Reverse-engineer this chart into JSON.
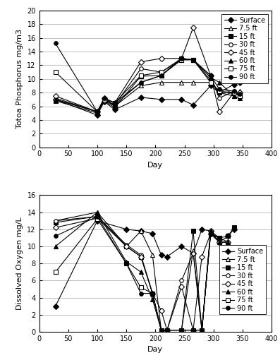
{
  "tp_data": {
    "Surface": {
      "days": [
        28,
        100,
        112,
        130,
        175,
        210,
        245,
        265,
        295,
        310,
        335,
        345
      ],
      "vals": [
        7.0,
        4.7,
        6.7,
        5.5,
        7.3,
        7.0,
        7.0,
        6.2,
        9.0,
        8.0,
        9.2,
        9.5
      ]
    },
    "7.5 ft": {
      "days": [
        28,
        100,
        112,
        130,
        175,
        210,
        245,
        265,
        295,
        310,
        335,
        345
      ],
      "vals": [
        7.2,
        5.2,
        7.0,
        6.0,
        9.0,
        9.5,
        9.5,
        9.5,
        9.5,
        8.0,
        7.5,
        8.2
      ]
    },
    "15 ft": {
      "days": [
        28,
        100,
        112,
        130,
        175,
        210,
        245,
        265,
        295,
        310,
        335,
        345
      ],
      "vals": [
        6.8,
        5.0,
        6.8,
        5.8,
        10.4,
        10.5,
        13.0,
        12.8,
        9.8,
        8.0,
        8.0,
        7.5
      ]
    },
    "30 ft": {
      "days": [
        28,
        100,
        112,
        130,
        175,
        210,
        245,
        265,
        295,
        310,
        335,
        345
      ],
      "vals": [
        7.0,
        5.2,
        6.8,
        6.2,
        11.5,
        11.0,
        13.0,
        12.8,
        10.5,
        7.2,
        8.2,
        7.8
      ]
    },
    "45 ft": {
      "days": [
        28,
        100,
        112,
        130,
        175,
        210,
        245,
        265,
        295,
        310,
        335,
        345
      ],
      "vals": [
        7.5,
        5.2,
        7.2,
        6.5,
        12.5,
        13.0,
        13.0,
        17.5,
        10.5,
        5.2,
        8.0,
        8.0
      ]
    },
    "60 ft": {
      "days": [
        28,
        100,
        112,
        130,
        175,
        210,
        245,
        265,
        295,
        310,
        335,
        345
      ],
      "vals": [
        7.0,
        5.2,
        7.0,
        6.2,
        9.5,
        10.5,
        12.8,
        12.8,
        10.2,
        9.5,
        7.5,
        7.2
      ]
    },
    "75 ft": {
      "days": [
        28,
        100,
        112,
        130,
        175,
        210,
        245,
        265,
        295,
        310,
        335,
        345
      ],
      "vals": [
        11.0,
        5.2,
        7.0,
        6.5,
        10.5,
        11.0,
        12.8,
        12.8,
        9.5,
        8.2,
        8.0,
        7.5
      ]
    },
    "90 ft": {
      "days": [
        28,
        100,
        112,
        130,
        175,
        210,
        245,
        265,
        295,
        310,
        335,
        345
      ],
      "vals": [
        15.2,
        5.2,
        7.2,
        6.5,
        9.5,
        10.5,
        13.0,
        12.8,
        10.5,
        8.5,
        8.2,
        7.8
      ]
    }
  },
  "do_data": {
    "Surface": {
      "days": [
        28,
        100,
        150,
        175,
        195,
        210,
        220,
        245,
        265,
        280,
        295,
        310,
        325,
        335
      ],
      "vals": [
        3.0,
        13.0,
        12.0,
        11.8,
        11.5,
        9.0,
        8.8,
        10.0,
        9.2,
        12.0,
        11.8,
        10.5,
        11.2,
        12.0
      ]
    },
    "7.5 ft": {
      "days": [
        28,
        100,
        150,
        175,
        195,
        210,
        245,
        265,
        280,
        295,
        310,
        325
      ],
      "vals": [
        13.0,
        14.0,
        10.0,
        11.8,
        9.0,
        0.2,
        0.2,
        9.5,
        0.2,
        11.5,
        10.5,
        10.5
      ]
    },
    "15 ft": {
      "days": [
        28,
        100,
        150,
        175,
        195,
        210,
        220,
        245,
        265,
        280,
        295,
        310,
        325,
        335
      ],
      "vals": [
        12.8,
        13.5,
        10.0,
        8.8,
        4.5,
        0.2,
        0.2,
        0.2,
        11.8,
        0.2,
        11.5,
        11.0,
        11.2,
        12.2
      ]
    },
    "30 ft": {
      "days": [
        28,
        100,
        150,
        175,
        195,
        210,
        220,
        245,
        265,
        280,
        295,
        310,
        325
      ],
      "vals": [
        13.0,
        13.5,
        10.2,
        9.0,
        4.5,
        0.2,
        0.2,
        6.0,
        9.2,
        0.2,
        11.8,
        11.0,
        10.5
      ]
    },
    "45 ft": {
      "days": [
        28,
        100,
        150,
        175,
        195,
        210,
        220,
        245,
        265,
        280,
        295,
        310,
        325
      ],
      "vals": [
        12.2,
        13.3,
        10.0,
        8.8,
        4.5,
        2.5,
        0.2,
        5.3,
        0.2,
        8.8,
        11.5,
        10.5,
        10.5
      ]
    },
    "60 ft": {
      "days": [
        28,
        100,
        150,
        175,
        195,
        210,
        220,
        245,
        265,
        280,
        295,
        310,
        325
      ],
      "vals": [
        10.0,
        14.0,
        8.2,
        7.0,
        3.8,
        0.2,
        0.2,
        0.2,
        0.2,
        0.2,
        11.8,
        10.5,
        10.5
      ]
    },
    "75 ft": {
      "days": [
        28,
        100,
        150,
        175,
        195,
        210,
        220,
        245,
        265,
        280,
        295,
        310
      ],
      "vals": [
        7.0,
        13.2,
        8.0,
        5.2,
        4.5,
        0.2,
        0.2,
        0.2,
        0.2,
        0.2,
        11.5,
        11.0
      ]
    },
    "90 ft": {
      "days": [
        28,
        100,
        150,
        175,
        195,
        210,
        220,
        245,
        265,
        280,
        295,
        310
      ],
      "vals": [
        11.2,
        13.5,
        8.0,
        4.5,
        4.5,
        0.2,
        0.2,
        0.2,
        0.2,
        0.2,
        11.5,
        11.0
      ]
    }
  },
  "series_styles": {
    "Surface": {
      "marker": "D",
      "linestyle": "-",
      "color": "#000000",
      "markersize": 4,
      "mfc": "#000000"
    },
    "7.5 ft": {
      "marker": "^",
      "linestyle": "-",
      "color": "#000000",
      "markersize": 5,
      "mfc": "white"
    },
    "15 ft": {
      "marker": "s",
      "linestyle": "-",
      "color": "#000000",
      "markersize": 4,
      "mfc": "#000000"
    },
    "30 ft": {
      "marker": "o",
      "linestyle": "-",
      "color": "#000000",
      "markersize": 4,
      "mfc": "white"
    },
    "45 ft": {
      "marker": "D",
      "linestyle": "-",
      "color": "#000000",
      "markersize": 4,
      "mfc": "white"
    },
    "60 ft": {
      "marker": "^",
      "linestyle": "-",
      "color": "#000000",
      "markersize": 5,
      "mfc": "#000000"
    },
    "75 ft": {
      "marker": "s",
      "linestyle": "-",
      "color": "#000000",
      "markersize": 4,
      "mfc": "white"
    },
    "90 ft": {
      "marker": "o",
      "linestyle": "-",
      "color": "#000000",
      "markersize": 4,
      "mfc": "#000000"
    }
  },
  "tp_ylim": [
    0,
    20
  ],
  "tp_yticks": [
    0,
    2,
    4,
    6,
    8,
    10,
    12,
    14,
    16,
    18,
    20
  ],
  "do_ylim": [
    0,
    16
  ],
  "do_yticks": [
    0,
    2,
    4,
    6,
    8,
    10,
    12,
    14,
    16
  ],
  "xlim": [
    0,
    400
  ],
  "xticks": [
    0,
    50,
    100,
    150,
    200,
    250,
    300,
    350,
    400
  ],
  "tp_ylabel": "Totoa Phosphorus mg/m3",
  "do_ylabel": "Dissolved Oxygen mg/L",
  "xlabel": "Day",
  "background_color": "#ffffff",
  "plot_bg_color": "#ffffff",
  "outer_bg_color": "#d0d0d0",
  "label_fontsize": 8,
  "tick_fontsize": 7,
  "legend_fontsize": 7
}
